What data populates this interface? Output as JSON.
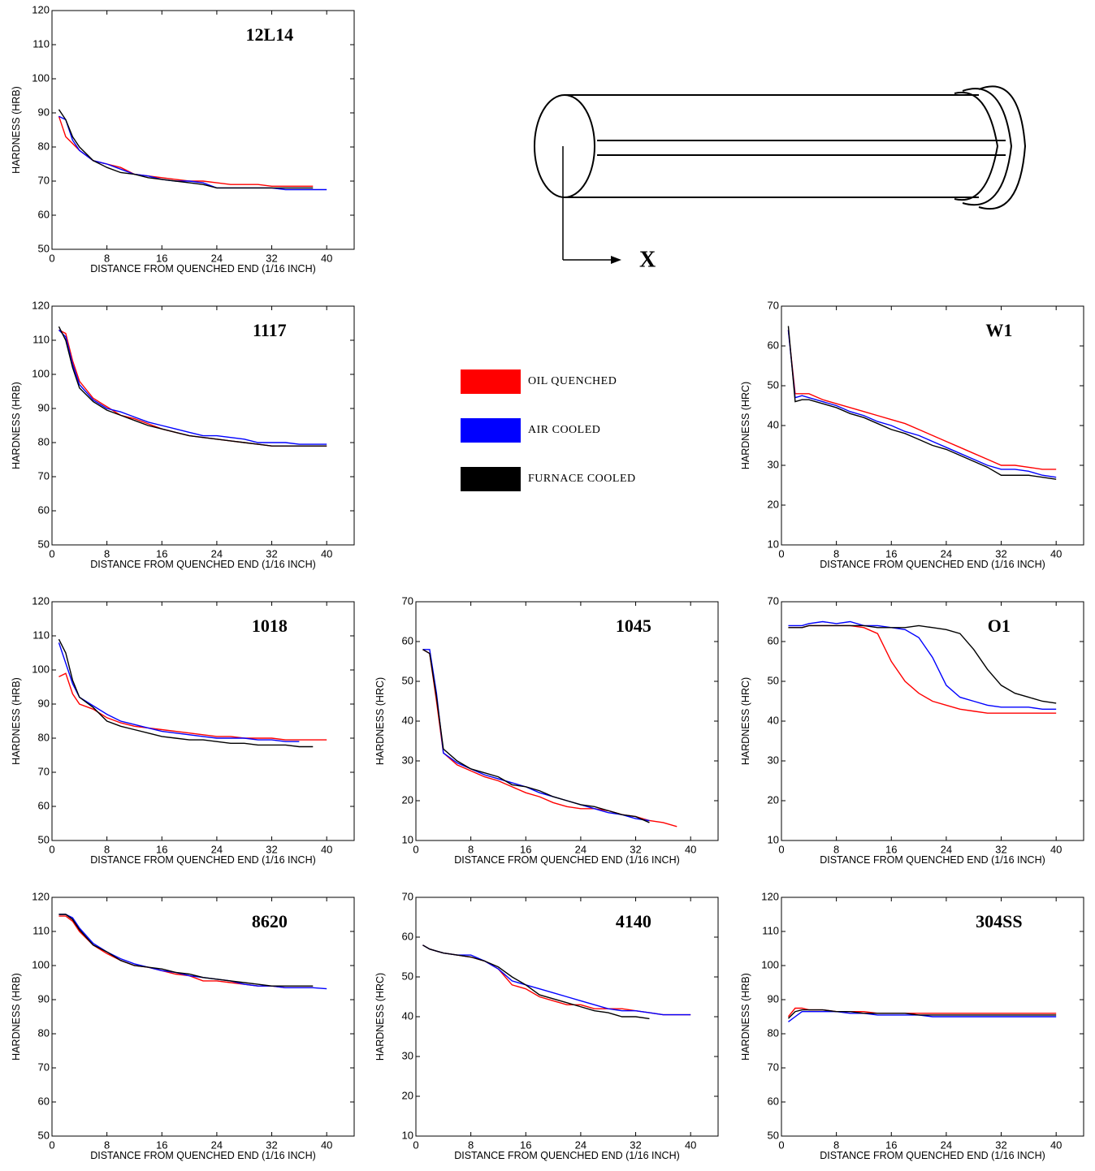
{
  "legend": [
    {
      "name": "OIL QUENCHED",
      "color": "#ff0000"
    },
    {
      "name": "AIR COOLED",
      "color": "#0000ff"
    },
    {
      "name": "FURNACE COOLED",
      "color": "#000000"
    }
  ],
  "diagram": {
    "label": "X"
  },
  "chart_data": [
    {
      "type": "line",
      "title": "12L14",
      "xlabel": "DISTANCE FROM QUENCHED END (1/16 INCH)",
      "ylabel": "HARDNESS (HRB)",
      "x": [
        1,
        2,
        3,
        4,
        6,
        8,
        10,
        12,
        14,
        16,
        18,
        20,
        22,
        24,
        26,
        28,
        30,
        32,
        34,
        36,
        38,
        40
      ],
      "xlim": [
        0,
        44
      ],
      "ylim": [
        50,
        120
      ],
      "xticks": [
        0,
        8,
        16,
        24,
        32,
        40
      ],
      "yticks": [
        50,
        60,
        70,
        80,
        90,
        100,
        110,
        120
      ],
      "series": [
        {
          "color": "#ff0000",
          "values": [
            89,
            83,
            81,
            79,
            76,
            75,
            74,
            72,
            71.5,
            71,
            70.5,
            70,
            70,
            69.5,
            69,
            69,
            69,
            68.5,
            68.5,
            68.5,
            68.5,
            null
          ]
        },
        {
          "color": "#0000ff",
          "values": [
            89,
            88,
            82,
            79,
            76,
            75,
            73.5,
            72,
            71.5,
            70.5,
            70,
            70,
            69.5,
            68,
            68,
            68,
            68,
            68,
            67.5,
            67.5,
            67.5,
            67.5
          ]
        },
        {
          "color": "#000000",
          "values": [
            91,
            88,
            83,
            80,
            76,
            74,
            72.5,
            72,
            71,
            70.5,
            70,
            69.5,
            69,
            68,
            68,
            68,
            68,
            68,
            68,
            68,
            68,
            null
          ]
        }
      ]
    },
    {
      "type": "line",
      "title": "1117",
      "xlabel": "DISTANCE FROM QUENCHED END (1/16 INCH)",
      "ylabel": "HARDNESS (HRB)",
      "x": [
        1,
        2,
        3,
        4,
        6,
        8,
        10,
        12,
        14,
        16,
        18,
        20,
        22,
        24,
        26,
        28,
        30,
        32,
        34,
        36,
        38,
        40
      ],
      "xlim": [
        0,
        44
      ],
      "ylim": [
        50,
        120
      ],
      "xticks": [
        0,
        8,
        16,
        24,
        32,
        40
      ],
      "yticks": [
        50,
        60,
        70,
        80,
        90,
        100,
        110,
        120
      ],
      "series": [
        {
          "color": "#ff0000",
          "values": [
            113,
            112,
            104,
            98,
            93,
            90.5,
            88,
            87,
            85.5,
            84,
            83,
            82,
            81.5,
            81,
            80.5,
            80,
            79.5,
            79,
            79,
            79,
            79,
            79
          ]
        },
        {
          "color": "#0000ff",
          "values": [
            113,
            111,
            103,
            97,
            92.5,
            90,
            89,
            87.5,
            86,
            85,
            84,
            83,
            82,
            82,
            81.5,
            81,
            80,
            80,
            80,
            79.5,
            79.5,
            79.5
          ]
        },
        {
          "color": "#000000",
          "values": [
            114,
            110,
            102,
            96,
            92,
            89.5,
            88,
            86.5,
            85,
            84,
            83,
            82,
            81.5,
            81,
            80.5,
            80,
            79.5,
            79,
            79,
            79,
            79,
            79
          ]
        }
      ]
    },
    {
      "type": "line",
      "title": "W1",
      "xlabel": "DISTANCE FROM QUENCHED END (1/16 INCH)",
      "ylabel": "HARDNESS (HRC)",
      "x": [
        1,
        2,
        3,
        4,
        6,
        8,
        10,
        12,
        14,
        16,
        18,
        20,
        22,
        24,
        26,
        28,
        30,
        32,
        34,
        36,
        38,
        40
      ],
      "xlim": [
        0,
        44
      ],
      "ylim": [
        10,
        70
      ],
      "xticks": [
        0,
        8,
        16,
        24,
        32,
        40
      ],
      "yticks": [
        10,
        20,
        30,
        40,
        50,
        60,
        70
      ],
      "series": [
        {
          "color": "#ff0000",
          "values": [
            64,
            48,
            48,
            48,
            46.5,
            45.5,
            44.5,
            43.5,
            42.5,
            41.5,
            40.5,
            39,
            37.5,
            36,
            34.5,
            33,
            31.5,
            30,
            30,
            29.5,
            29,
            29
          ]
        },
        {
          "color": "#0000ff",
          "values": [
            64,
            47,
            47.5,
            47,
            46,
            45,
            43.5,
            42.5,
            41,
            40,
            38.5,
            37.5,
            36,
            34.5,
            33,
            31.5,
            30,
            29,
            29,
            28.5,
            27.5,
            27
          ]
        },
        {
          "color": "#000000",
          "values": [
            65,
            46,
            46.5,
            46.5,
            45.5,
            44.5,
            43,
            42,
            40.5,
            39,
            38,
            36.5,
            35,
            34,
            32.5,
            31,
            29.5,
            27.5,
            27.5,
            27.5,
            27,
            26.5
          ]
        }
      ]
    },
    {
      "type": "line",
      "title": "1018",
      "xlabel": "DISTANCE FROM QUENCHED END (1/16 INCH)",
      "ylabel": "HARDNESS (HRB)",
      "x": [
        1,
        2,
        3,
        4,
        6,
        8,
        10,
        12,
        14,
        16,
        18,
        20,
        22,
        24,
        26,
        28,
        30,
        32,
        34,
        36,
        38,
        40
      ],
      "xlim": [
        0,
        44
      ],
      "ylim": [
        50,
        120
      ],
      "xticks": [
        0,
        8,
        16,
        24,
        32,
        40
      ],
      "yticks": [
        50,
        60,
        70,
        80,
        90,
        100,
        110,
        120
      ],
      "series": [
        {
          "color": "#ff0000",
          "values": [
            98,
            99,
            93,
            90,
            88.5,
            86,
            84.5,
            83.5,
            83,
            82.5,
            82,
            81.5,
            81,
            80.5,
            80.5,
            80,
            80,
            80,
            79.5,
            79.5,
            79.5,
            79.5
          ]
        },
        {
          "color": "#0000ff",
          "values": [
            108,
            102,
            96,
            92,
            89.5,
            87,
            85,
            84,
            83,
            82,
            81.5,
            81,
            80.5,
            80,
            80,
            80,
            79.5,
            79.5,
            79,
            79,
            null,
            null
          ]
        },
        {
          "color": "#000000",
          "values": [
            109,
            105,
            97,
            92,
            89,
            85,
            83.5,
            82.5,
            81.5,
            80.5,
            80,
            79.5,
            79.5,
            79,
            78.5,
            78.5,
            78,
            78,
            78,
            77.5,
            77.5,
            null
          ]
        }
      ]
    },
    {
      "type": "line",
      "title": "1045",
      "xlabel": "DISTANCE FROM QUENCHED END (1/16 INCH)",
      "ylabel": "HARDNESS (HRC)",
      "x": [
        1,
        2,
        3,
        4,
        6,
        8,
        10,
        12,
        14,
        16,
        18,
        20,
        22,
        24,
        26,
        28,
        30,
        32,
        34,
        36,
        38,
        40
      ],
      "xlim": [
        0,
        44
      ],
      "ylim": [
        10,
        70
      ],
      "xticks": [
        0,
        8,
        16,
        24,
        32,
        40
      ],
      "yticks": [
        10,
        20,
        30,
        40,
        50,
        60,
        70
      ],
      "series": [
        {
          "color": "#ff0000",
          "values": [
            58,
            57,
            45,
            32,
            29,
            27.5,
            26,
            25,
            23.5,
            22,
            21,
            19.5,
            18.5,
            18,
            18,
            17.5,
            16.5,
            16,
            15,
            14.5,
            13.5,
            null
          ]
        },
        {
          "color": "#0000ff",
          "values": [
            58,
            58,
            47,
            32,
            29.5,
            28,
            26.5,
            25.5,
            24.5,
            23.5,
            22,
            21,
            20,
            19,
            18,
            17,
            16.5,
            15.5,
            15,
            null,
            null,
            null
          ]
        },
        {
          "color": "#000000",
          "values": [
            58,
            57,
            46,
            33,
            30,
            28,
            27,
            26,
            24,
            23.5,
            22.5,
            21,
            20,
            19,
            18.5,
            17.5,
            16.5,
            16,
            14.5,
            null,
            null,
            null
          ]
        }
      ]
    },
    {
      "type": "line",
      "title": "O1",
      "xlabel": "DISTANCE FROM QUENCHED END (1/16 INCH)",
      "ylabel": "HARDNESS (HRC)",
      "x": [
        1,
        2,
        3,
        4,
        6,
        8,
        10,
        12,
        14,
        16,
        18,
        20,
        22,
        24,
        26,
        28,
        30,
        32,
        34,
        36,
        38,
        40
      ],
      "xlim": [
        0,
        44
      ],
      "ylim": [
        10,
        70
      ],
      "xticks": [
        0,
        8,
        16,
        24,
        32,
        40
      ],
      "yticks": [
        10,
        20,
        30,
        40,
        50,
        60,
        70
      ],
      "series": [
        {
          "color": "#ff0000",
          "values": [
            63.5,
            63.5,
            63.5,
            64,
            64,
            64,
            64,
            63.5,
            62,
            55,
            50,
            47,
            45,
            44,
            43,
            42.5,
            42,
            42,
            42,
            42,
            42,
            42
          ]
        },
        {
          "color": "#0000ff",
          "values": [
            64,
            64,
            64,
            64.5,
            65,
            64.5,
            65,
            64,
            64,
            63.5,
            63,
            61,
            56,
            49,
            46,
            45,
            44,
            43.5,
            43.5,
            43.5,
            43,
            43
          ]
        },
        {
          "color": "#000000",
          "values": [
            63.5,
            63.5,
            63.5,
            64,
            64,
            64,
            64,
            64,
            63.5,
            63.5,
            63.5,
            64,
            63.5,
            63,
            62,
            58,
            53,
            49,
            47,
            46,
            45,
            44.5
          ]
        }
      ]
    },
    {
      "type": "line",
      "title": "8620",
      "xlabel": "DISTANCE FROM QUENCHED END (1/16 INCH)",
      "ylabel": "HARDNESS (HRB)",
      "x": [
        1,
        2,
        3,
        4,
        6,
        8,
        10,
        12,
        14,
        16,
        18,
        20,
        22,
        24,
        26,
        28,
        30,
        32,
        34,
        36,
        38,
        40
      ],
      "xlim": [
        0,
        44
      ],
      "ylim": [
        50,
        120
      ],
      "xticks": [
        0,
        8,
        16,
        24,
        32,
        40
      ],
      "yticks": [
        50,
        60,
        70,
        80,
        90,
        100,
        110,
        120
      ],
      "series": [
        {
          "color": "#ff0000",
          "values": [
            114.5,
            114.5,
            113,
            110,
            106,
            103.5,
            101.5,
            100,
            99.5,
            98.5,
            97.5,
            97,
            95.5,
            95.5,
            95,
            94.5,
            94,
            94,
            93.5,
            93.5,
            93.5,
            null
          ]
        },
        {
          "color": "#0000ff",
          "values": [
            115,
            115,
            114,
            111,
            106.5,
            104,
            102,
            100.5,
            99.5,
            98.5,
            98,
            97,
            96.5,
            96,
            95.5,
            94.5,
            94,
            94,
            93.5,
            93.5,
            93.5,
            93.2
          ]
        },
        {
          "color": "#000000",
          "values": [
            115,
            115,
            113.5,
            110.5,
            106,
            104,
            101.5,
            100,
            99.5,
            99,
            98,
            97.5,
            96.5,
            96,
            95.5,
            95,
            94.5,
            94,
            94,
            94,
            94,
            null
          ]
        }
      ]
    },
    {
      "type": "line",
      "title": "4140",
      "xlabel": "DISTANCE FROM QUENCHED END (1/16 INCH)",
      "ylabel": "HARDNESS (HRC)",
      "x": [
        1,
        2,
        3,
        4,
        6,
        8,
        10,
        12,
        14,
        16,
        18,
        20,
        22,
        24,
        26,
        28,
        30,
        32,
        34,
        36,
        38,
        40
      ],
      "xlim": [
        0,
        44
      ],
      "ylim": [
        10,
        70
      ],
      "xticks": [
        0,
        8,
        16,
        24,
        32,
        40
      ],
      "yticks": [
        10,
        20,
        30,
        40,
        50,
        60,
        70
      ],
      "series": [
        {
          "color": "#ff0000",
          "values": [
            58,
            57,
            56.5,
            56,
            55.5,
            55,
            54,
            52,
            48,
            47,
            45,
            44,
            43,
            43,
            42,
            42,
            42,
            41.5,
            41,
            40.5,
            40.5,
            40.5
          ]
        },
        {
          "color": "#0000ff",
          "values": [
            58,
            57,
            56.5,
            56,
            55.5,
            55.5,
            54,
            52,
            49,
            48,
            47,
            46,
            45,
            44,
            43,
            42,
            41.5,
            41.5,
            41,
            40.5,
            40.5,
            40.5
          ]
        },
        {
          "color": "#000000",
          "values": [
            58,
            57,
            56.5,
            56,
            55.5,
            55,
            54,
            52.5,
            50,
            48,
            45.5,
            44.5,
            43.5,
            42.5,
            41.5,
            41,
            40,
            40,
            39.5,
            null,
            null,
            null
          ]
        }
      ]
    },
    {
      "type": "line",
      "title": "304SS",
      "xlabel": "DISTANCE FROM QUENCHED END (1/16 INCH)",
      "ylabel": "HARDNESS (HRB)",
      "x": [
        1,
        2,
        3,
        4,
        6,
        8,
        10,
        12,
        14,
        16,
        18,
        20,
        22,
        24,
        26,
        28,
        30,
        32,
        34,
        36,
        38,
        40
      ],
      "xlim": [
        0,
        44
      ],
      "ylim": [
        50,
        120
      ],
      "xticks": [
        0,
        8,
        16,
        24,
        32,
        40
      ],
      "yticks": [
        50,
        60,
        70,
        80,
        90,
        100,
        110,
        120
      ],
      "series": [
        {
          "color": "#ff0000",
          "values": [
            85,
            87.5,
            87.5,
            87,
            87,
            86.5,
            86.5,
            86.5,
            86,
            86,
            86,
            86,
            86,
            86,
            86,
            86,
            86,
            86,
            86,
            86,
            86,
            86
          ]
        },
        {
          "color": "#0000ff",
          "values": [
            83.5,
            85,
            86.5,
            86.5,
            86.5,
            86.5,
            86,
            86,
            85.5,
            85.5,
            85.5,
            85.5,
            85,
            85,
            85,
            85,
            85,
            85,
            85,
            85,
            85,
            85
          ]
        },
        {
          "color": "#000000",
          "values": [
            84.5,
            86.5,
            87,
            87,
            87,
            86.5,
            86.5,
            86,
            86,
            86,
            86,
            85.5,
            85.5,
            85.5,
            85.5,
            85.5,
            85.5,
            85.5,
            85.5,
            85.5,
            85.5,
            85.5
          ]
        }
      ]
    }
  ]
}
